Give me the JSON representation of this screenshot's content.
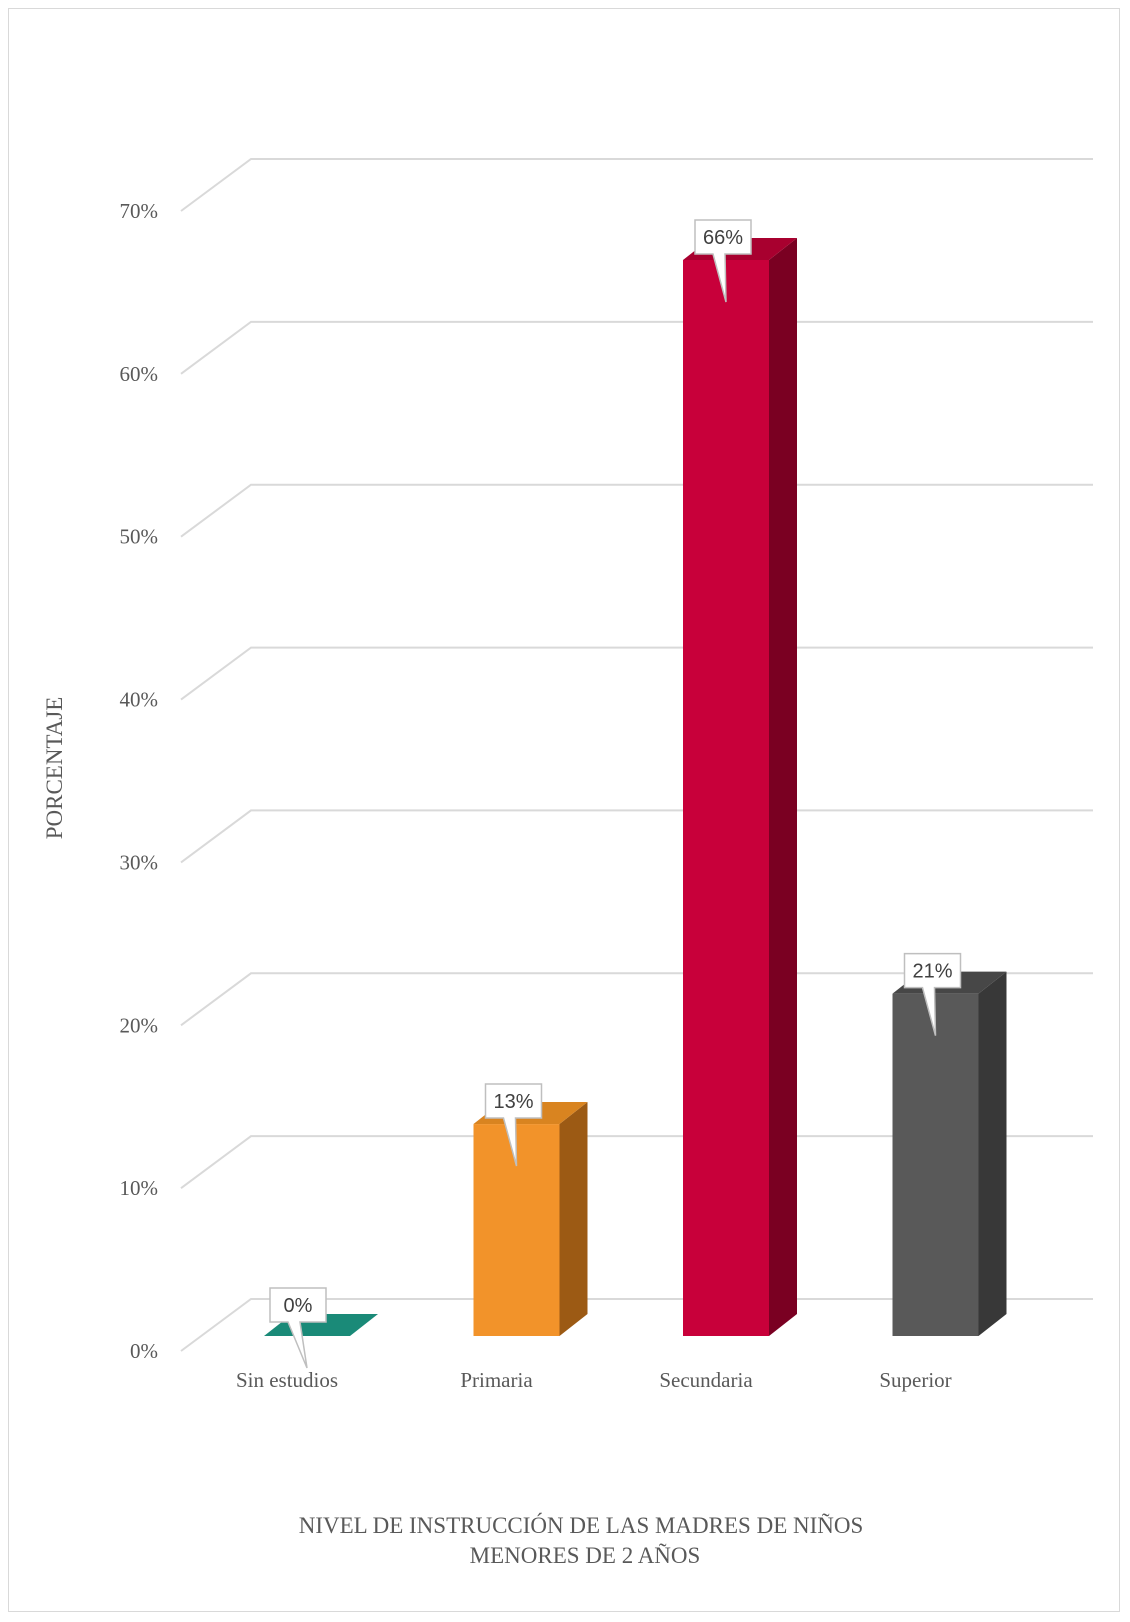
{
  "chart_data": {
    "type": "bar",
    "categories": [
      "Sin estudios",
      "Primaria",
      "Secundaria",
      "Superior"
    ],
    "values": [
      0,
      13,
      66,
      21
    ],
    "data_labels": [
      "0%",
      "13%",
      "66%",
      "21%"
    ],
    "value_format": "percent",
    "ylabel": "PORCENTAJE",
    "xlabel_lines": [
      "NIVEL DE INSTRUCCIÓN DE LAS MADRES DE NIÑOS",
      "MENORES DE 2 AÑOS"
    ],
    "ylim": [
      0,
      70
    ],
    "yticks": [
      0,
      10,
      20,
      30,
      40,
      50,
      60,
      70
    ],
    "ytick_labels": [
      "0%",
      "10%",
      "20%",
      "30%",
      "40%",
      "50%",
      "60%",
      "70%"
    ],
    "grid": true,
    "legend": "none",
    "style_3d": true,
    "colors": {
      "front": [
        "#1a8a78",
        "#f2932a",
        "#c8003a",
        "#595959"
      ],
      "side": [
        "#0f6a5c",
        "#9c5a14",
        "#7a0022",
        "#383838"
      ],
      "top": [
        "#1a8a78",
        "#d98420",
        "#a8002f",
        "#474747"
      ],
      "grid": "#d9d9d9",
      "text": "#595959"
    }
  }
}
